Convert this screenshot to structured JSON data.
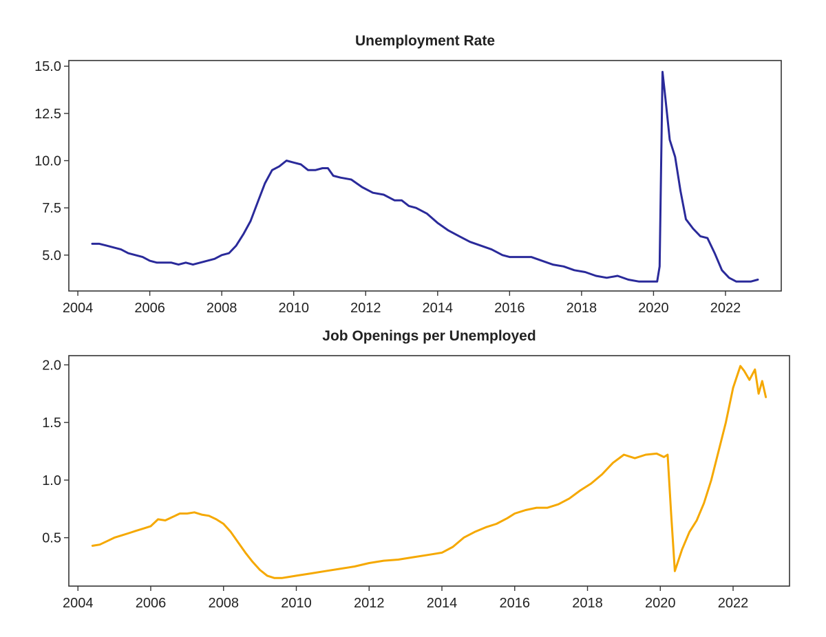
{
  "chart_data": [
    {
      "type": "line",
      "title": "Unemployment Rate",
      "xlabel": "",
      "ylabel": "",
      "xlim": [
        2003.75,
        2023.55
      ],
      "ylim": [
        3.1,
        15.3
      ],
      "yticks": [
        5.0,
        7.5,
        10.0,
        12.5,
        15.0
      ],
      "ytick_labels": [
        "5.0",
        "7.5",
        "10.0",
        "12.5",
        "15.0"
      ],
      "xticks": [
        2004,
        2006,
        2008,
        2010,
        2012,
        2014,
        2016,
        2018,
        2020,
        2022
      ],
      "xtick_labels": [
        "2004",
        "2006",
        "2008",
        "2010",
        "2012",
        "2014",
        "2016",
        "2018",
        "2020",
        "2022"
      ],
      "grid": false,
      "legend": "none",
      "series": [
        {
          "color": "#2a2a9a",
          "x": [
            2004.4,
            2004.6,
            2004.8,
            2005.0,
            2005.2,
            2005.4,
            2005.6,
            2005.8,
            2006.0,
            2006.2,
            2006.4,
            2006.6,
            2006.8,
            2007.0,
            2007.2,
            2007.4,
            2007.6,
            2007.8,
            2008.0,
            2008.2,
            2008.4,
            2008.6,
            2008.8,
            2009.0,
            2009.2,
            2009.4,
            2009.6,
            2009.8,
            2010.0,
            2010.2,
            2010.4,
            2010.6,
            2010.8,
            2010.95,
            2011.1,
            2011.3,
            2011.6,
            2011.9,
            2012.2,
            2012.5,
            2012.8,
            2013.0,
            2013.2,
            2013.4,
            2013.7,
            2014.0,
            2014.3,
            2014.6,
            2014.9,
            2015.2,
            2015.5,
            2015.8,
            2016.0,
            2016.3,
            2016.6,
            2016.9,
            2017.2,
            2017.5,
            2017.8,
            2018.1,
            2018.4,
            2018.7,
            2019.0,
            2019.3,
            2019.6,
            2019.9,
            2020.1,
            2020.17,
            2020.25,
            2020.33,
            2020.45,
            2020.6,
            2020.75,
            2020.9,
            2021.1,
            2021.3,
            2021.5,
            2021.7,
            2021.9,
            2022.1,
            2022.3,
            2022.5,
            2022.7,
            2022.9
          ],
          "y": [
            5.6,
            5.6,
            5.5,
            5.4,
            5.3,
            5.1,
            5.0,
            4.9,
            4.7,
            4.6,
            4.6,
            4.6,
            4.5,
            4.6,
            4.5,
            4.6,
            4.7,
            4.8,
            5.0,
            5.1,
            5.5,
            6.1,
            6.8,
            7.8,
            8.8,
            9.5,
            9.7,
            10.0,
            9.9,
            9.8,
            9.5,
            9.5,
            9.6,
            9.6,
            9.2,
            9.1,
            9.0,
            8.6,
            8.3,
            8.2,
            7.9,
            7.9,
            7.6,
            7.5,
            7.2,
            6.7,
            6.3,
            6.0,
            5.7,
            5.5,
            5.3,
            5.0,
            4.9,
            4.9,
            4.9,
            4.7,
            4.5,
            4.4,
            4.2,
            4.1,
            3.9,
            3.8,
            3.9,
            3.7,
            3.6,
            3.6,
            3.6,
            4.4,
            14.7,
            13.3,
            11.1,
            10.2,
            8.4,
            6.9,
            6.4,
            6.0,
            5.9,
            5.1,
            4.2,
            3.8,
            3.6,
            3.6,
            3.6,
            3.7
          ]
        }
      ]
    },
    {
      "type": "line",
      "title": "Job Openings per Unemployed",
      "xlabel": "",
      "ylabel": "",
      "xlim": [
        2003.75,
        2023.55
      ],
      "ylim": [
        0.08,
        2.08
      ],
      "yticks": [
        0.5,
        1.0,
        1.5,
        2.0
      ],
      "ytick_labels": [
        "0.5",
        "1.0",
        "1.5",
        "2.0"
      ],
      "xticks": [
        2004,
        2006,
        2008,
        2010,
        2012,
        2014,
        2016,
        2018,
        2020,
        2022
      ],
      "xtick_labels": [
        "2004",
        "2006",
        "2008",
        "2010",
        "2012",
        "2014",
        "2016",
        "2018",
        "2020",
        "2022"
      ],
      "grid": false,
      "legend": "none",
      "series": [
        {
          "color": "#f5a800",
          "x": [
            2004.4,
            2004.6,
            2004.8,
            2005.0,
            2005.2,
            2005.4,
            2005.6,
            2005.8,
            2006.0,
            2006.2,
            2006.4,
            2006.6,
            2006.8,
            2007.0,
            2007.2,
            2007.4,
            2007.6,
            2007.8,
            2008.0,
            2008.2,
            2008.4,
            2008.6,
            2008.8,
            2009.0,
            2009.2,
            2009.4,
            2009.6,
            2009.8,
            2010.0,
            2010.4,
            2010.8,
            2011.2,
            2011.6,
            2012.0,
            2012.4,
            2012.8,
            2013.2,
            2013.6,
            2014.0,
            2014.3,
            2014.6,
            2014.9,
            2015.2,
            2015.5,
            2015.8,
            2016.0,
            2016.3,
            2016.6,
            2016.9,
            2017.2,
            2017.5,
            2017.8,
            2018.1,
            2018.4,
            2018.7,
            2019.0,
            2019.3,
            2019.6,
            2019.9,
            2020.1,
            2020.2,
            2020.3,
            2020.4,
            2020.6,
            2020.8,
            2021.0,
            2021.2,
            2021.4,
            2021.6,
            2021.8,
            2022.0,
            2022.2,
            2022.3,
            2022.45,
            2022.6,
            2022.7,
            2022.8,
            2022.9
          ],
          "y": [
            0.43,
            0.44,
            0.47,
            0.5,
            0.52,
            0.54,
            0.56,
            0.58,
            0.6,
            0.66,
            0.65,
            0.68,
            0.71,
            0.71,
            0.72,
            0.7,
            0.69,
            0.66,
            0.62,
            0.55,
            0.46,
            0.37,
            0.29,
            0.22,
            0.17,
            0.15,
            0.15,
            0.16,
            0.17,
            0.19,
            0.21,
            0.23,
            0.25,
            0.28,
            0.3,
            0.31,
            0.33,
            0.35,
            0.37,
            0.42,
            0.5,
            0.55,
            0.59,
            0.62,
            0.67,
            0.71,
            0.74,
            0.76,
            0.76,
            0.79,
            0.84,
            0.91,
            0.97,
            1.05,
            1.15,
            1.22,
            1.19,
            1.22,
            1.23,
            1.2,
            1.22,
            0.7,
            0.21,
            0.4,
            0.55,
            0.65,
            0.8,
            1.0,
            1.25,
            1.5,
            1.8,
            1.99,
            1.95,
            1.87,
            1.96,
            1.75,
            1.86,
            1.72
          ]
        }
      ]
    }
  ]
}
